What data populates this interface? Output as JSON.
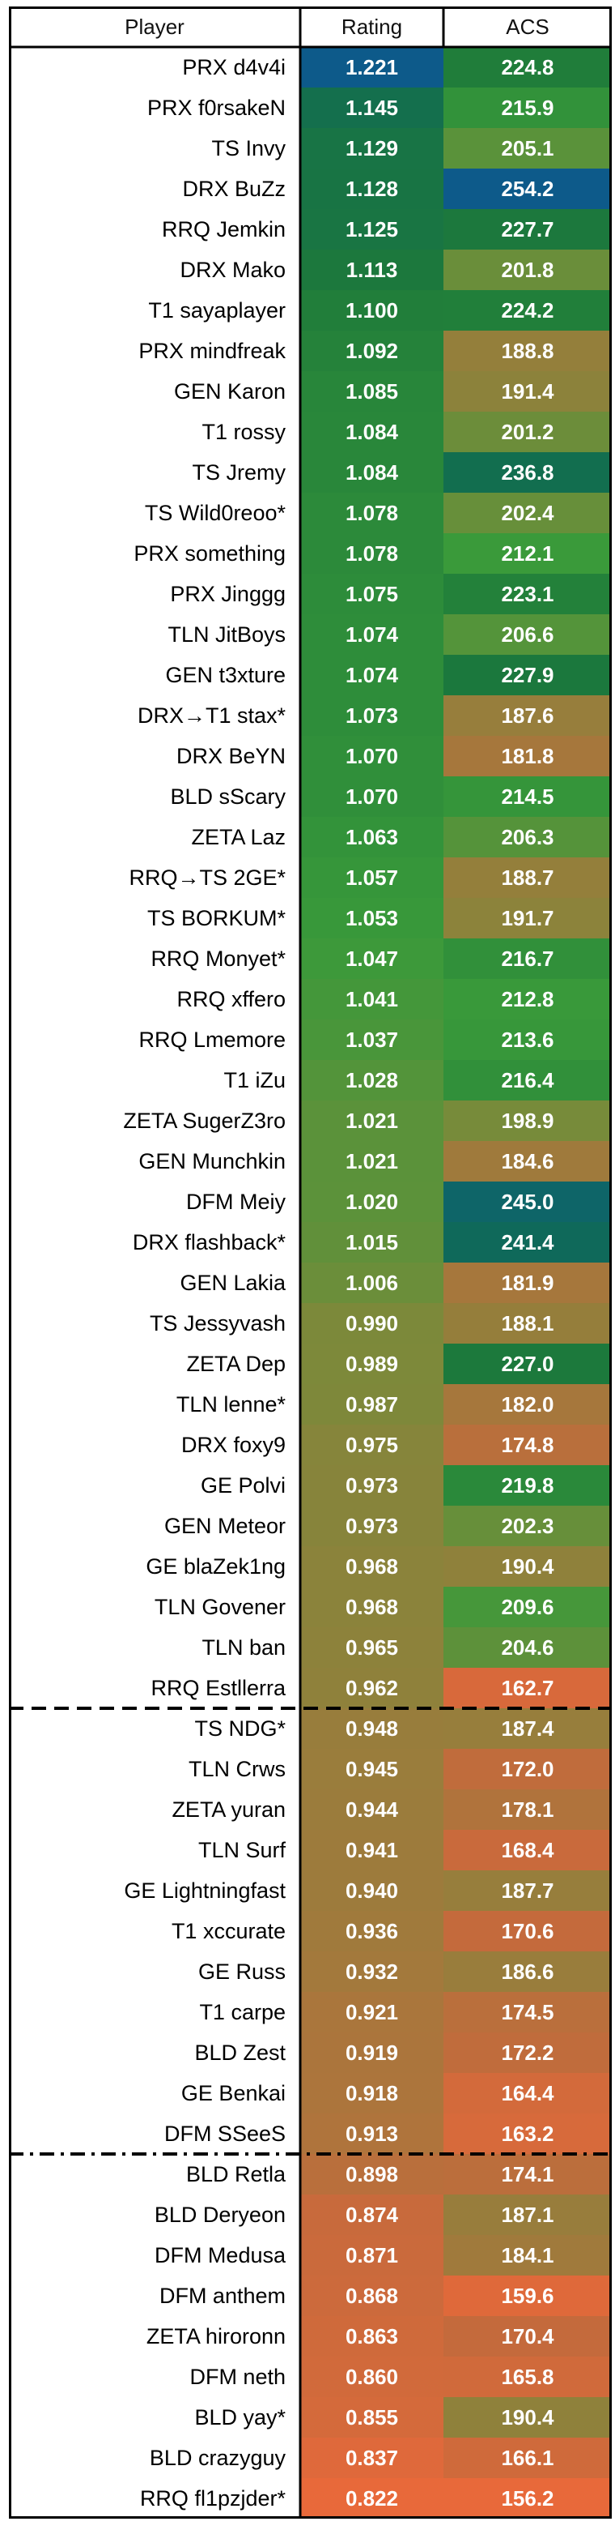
{
  "chart_data": {
    "type": "table",
    "columns": [
      "Player",
      "Rating",
      "ACS"
    ],
    "rows": [
      {
        "player": "PRX d4v4i",
        "rating": "1.221",
        "acs": "224.8"
      },
      {
        "player": "PRX f0rsakeN",
        "rating": "1.145",
        "acs": "215.9"
      },
      {
        "player": "TS Invy",
        "rating": "1.129",
        "acs": "205.1"
      },
      {
        "player": "DRX BuZz",
        "rating": "1.128",
        "acs": "254.2"
      },
      {
        "player": "RRQ Jemkin",
        "rating": "1.125",
        "acs": "227.7"
      },
      {
        "player": "DRX Mako",
        "rating": "1.113",
        "acs": "201.8"
      },
      {
        "player": "T1 sayaplayer",
        "rating": "1.100",
        "acs": "224.2"
      },
      {
        "player": "PRX mindfreak",
        "rating": "1.092",
        "acs": "188.8"
      },
      {
        "player": "GEN Karon",
        "rating": "1.085",
        "acs": "191.4"
      },
      {
        "player": "T1 rossy",
        "rating": "1.084",
        "acs": "201.2"
      },
      {
        "player": "TS Jremy",
        "rating": "1.084",
        "acs": "236.8"
      },
      {
        "player": "TS Wild0reoo*",
        "rating": "1.078",
        "acs": "202.4"
      },
      {
        "player": "PRX something",
        "rating": "1.078",
        "acs": "212.1"
      },
      {
        "player": "PRX Jinggg",
        "rating": "1.075",
        "acs": "223.1"
      },
      {
        "player": "TLN JitBoys",
        "rating": "1.074",
        "acs": "206.6"
      },
      {
        "player": "GEN t3xture",
        "rating": "1.074",
        "acs": "227.9"
      },
      {
        "player": "DRX→T1 stax*",
        "rating": "1.073",
        "acs": "187.6"
      },
      {
        "player": "DRX BeYN",
        "rating": "1.070",
        "acs": "181.8"
      },
      {
        "player": "BLD sScary",
        "rating": "1.070",
        "acs": "214.5"
      },
      {
        "player": "ZETA Laz",
        "rating": "1.063",
        "acs": "206.3"
      },
      {
        "player": "RRQ→TS 2GE*",
        "rating": "1.057",
        "acs": "188.7"
      },
      {
        "player": "TS BORKUM*",
        "rating": "1.053",
        "acs": "191.7"
      },
      {
        "player": "RRQ Monyet*",
        "rating": "1.047",
        "acs": "216.7"
      },
      {
        "player": "RRQ xffero",
        "rating": "1.041",
        "acs": "212.8"
      },
      {
        "player": "RRQ Lmemore",
        "rating": "1.037",
        "acs": "213.6"
      },
      {
        "player": "T1 iZu",
        "rating": "1.028",
        "acs": "216.4"
      },
      {
        "player": "ZETA SugerZ3ro",
        "rating": "1.021",
        "acs": "198.9"
      },
      {
        "player": "GEN Munchkin",
        "rating": "1.021",
        "acs": "184.6"
      },
      {
        "player": "DFM Meiy",
        "rating": "1.020",
        "acs": "245.0"
      },
      {
        "player": "DRX flashback*",
        "rating": "1.015",
        "acs": "241.4"
      },
      {
        "player": "GEN Lakia",
        "rating": "1.006",
        "acs": "181.9"
      },
      {
        "player": "TS Jessyvash",
        "rating": "0.990",
        "acs": "188.1"
      },
      {
        "player": "ZETA Dep",
        "rating": "0.989",
        "acs": "227.0"
      },
      {
        "player": "TLN lenne*",
        "rating": "0.987",
        "acs": "182.0"
      },
      {
        "player": "DRX foxy9",
        "rating": "0.975",
        "acs": "174.8"
      },
      {
        "player": "GE Polvi",
        "rating": "0.973",
        "acs": "219.8"
      },
      {
        "player": "GEN Meteor",
        "rating": "0.973",
        "acs": "202.3"
      },
      {
        "player": "GE blaZek1ng",
        "rating": "0.968",
        "acs": "190.4"
      },
      {
        "player": "TLN Govener",
        "rating": "0.968",
        "acs": "209.6"
      },
      {
        "player": "TLN ban",
        "rating": "0.965",
        "acs": "204.6"
      },
      {
        "player": "RRQ Estllerra",
        "rating": "0.962",
        "acs": "162.7"
      },
      {
        "player": "TS NDG*",
        "rating": "0.948",
        "acs": "187.4"
      },
      {
        "player": "TLN Crws",
        "rating": "0.945",
        "acs": "172.0"
      },
      {
        "player": "ZETA yuran",
        "rating": "0.944",
        "acs": "178.1"
      },
      {
        "player": "TLN Surf",
        "rating": "0.941",
        "acs": "168.4"
      },
      {
        "player": "GE Lightningfast",
        "rating": "0.940",
        "acs": "187.7"
      },
      {
        "player": "T1 xccurate",
        "rating": "0.936",
        "acs": "170.6"
      },
      {
        "player": "GE Russ",
        "rating": "0.932",
        "acs": "186.6"
      },
      {
        "player": "T1 carpe",
        "rating": "0.921",
        "acs": "174.5"
      },
      {
        "player": "BLD Zest",
        "rating": "0.919",
        "acs": "172.2"
      },
      {
        "player": "GE Benkai",
        "rating": "0.918",
        "acs": "164.4"
      },
      {
        "player": "DFM SSeeS",
        "rating": "0.913",
        "acs": "163.2"
      },
      {
        "player": "BLD Retla",
        "rating": "0.898",
        "acs": "174.1"
      },
      {
        "player": "BLD Deryeon",
        "rating": "0.874",
        "acs": "187.1"
      },
      {
        "player": "DFM Medusa",
        "rating": "0.871",
        "acs": "184.1"
      },
      {
        "player": "DFM anthem",
        "rating": "0.868",
        "acs": "159.6"
      },
      {
        "player": "ZETA hiroronn",
        "rating": "0.863",
        "acs": "170.4"
      },
      {
        "player": "DFM neth",
        "rating": "0.860",
        "acs": "165.8"
      },
      {
        "player": "BLD yay*",
        "rating": "0.855",
        "acs": "190.4"
      },
      {
        "player": "BLD crazyguy",
        "rating": "0.837",
        "acs": "166.1"
      },
      {
        "player": "RRQ fl1pzjder*",
        "rating": "0.822",
        "acs": "156.2"
      }
    ],
    "group_breaks_after_rows": [
      41,
      52
    ],
    "group_break_styles": [
      "dashed",
      "dash-dot"
    ],
    "colors": {
      "scale_high_low_ordered": [
        "#0d5a8a",
        "#0f6a56",
        "#1d7a3a",
        "#3a9a3a",
        "#7a8a3a",
        "#a07a3c",
        "#c56a3c",
        "#e8693a"
      ],
      "grid_line": "#000000",
      "header_bg": "#ffffff",
      "value_text": "#ffffff"
    }
  }
}
